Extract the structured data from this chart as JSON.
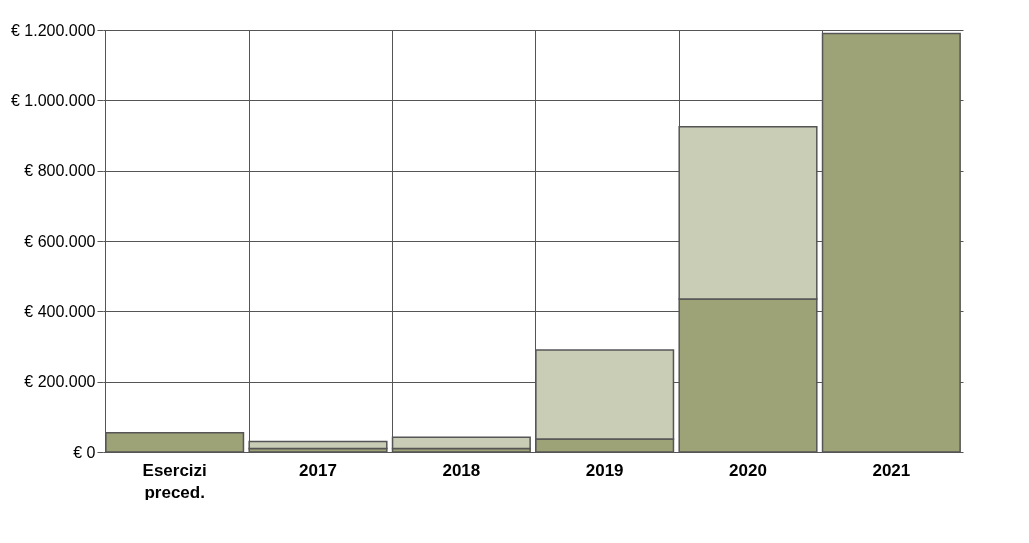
{
  "chart_data": {
    "type": "bar",
    "stacked": true,
    "categories": [
      "Esercizi preced.",
      "2017",
      "2018",
      "2019",
      "2020",
      "2021"
    ],
    "series": [
      {
        "color": "#9ea277",
        "values": [
          55000,
          10000,
          10000,
          37000,
          435000,
          1190000
        ]
      },
      {
        "color": "#c9cdb6",
        "values": [
          null,
          20000,
          32000,
          253000,
          490000,
          null
        ]
      }
    ],
    "ylim": [
      0,
      1200000
    ],
    "yticks": [
      {
        "value": 0,
        "label": "€ 0"
      },
      {
        "value": 200000,
        "label": "€ 200.000"
      },
      {
        "value": 400000,
        "label": "€ 400.000"
      },
      {
        "value": 600000,
        "label": "€ 600.000"
      },
      {
        "value": 800000,
        "label": "€ 800.000"
      },
      {
        "value": 1000000,
        "label": "€ 1.000.000"
      },
      {
        "value": 1200000,
        "label": "€ 1.200.000"
      }
    ],
    "grid": true
  }
}
